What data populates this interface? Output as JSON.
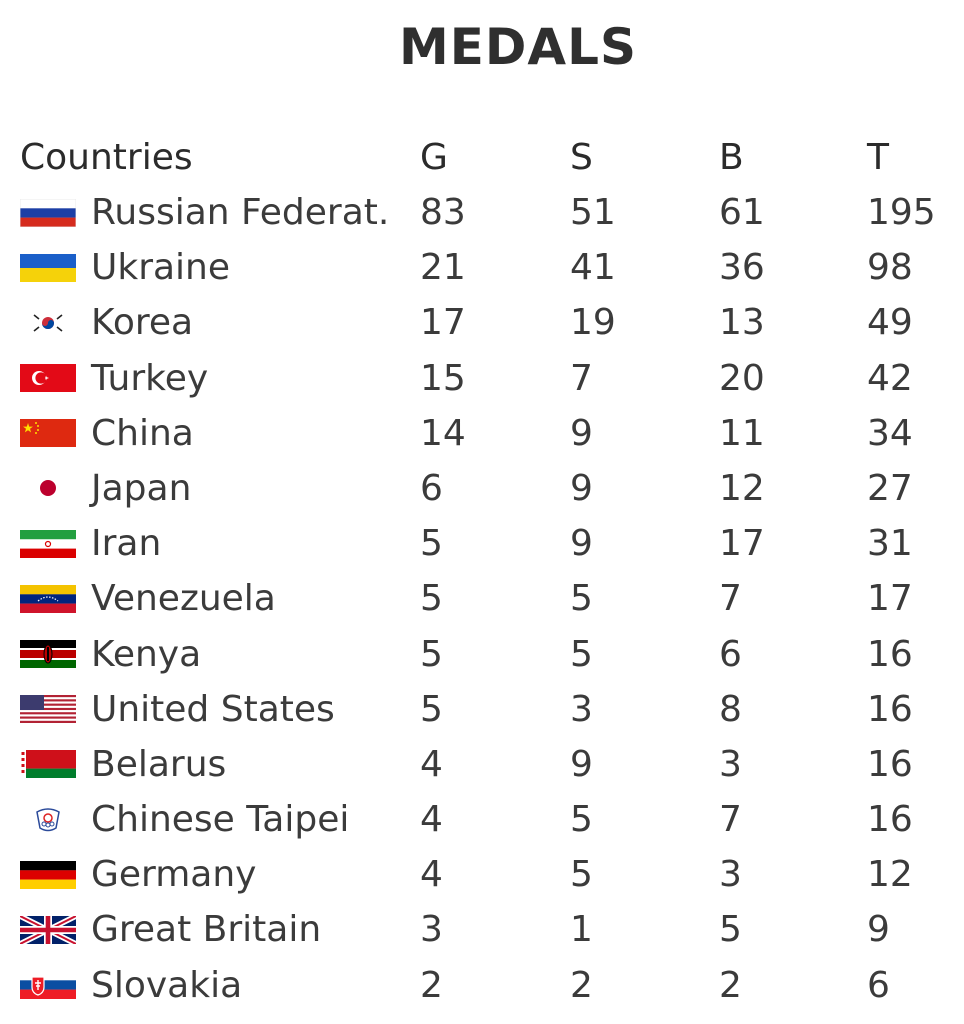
{
  "chart_data": {
    "type": "table",
    "title": "MEDALS",
    "columns": [
      "Countries",
      "G",
      "S",
      "B",
      "T"
    ],
    "rows": [
      {
        "country": "Russian Federat.",
        "flag_icon": "russia-flag-icon",
        "g": "83",
        "s": "51",
        "b": "61",
        "t": "195"
      },
      {
        "country": "Ukraine",
        "flag_icon": "ukraine-flag-icon",
        "g": "21",
        "s": "41",
        "b": "36",
        "t": "98"
      },
      {
        "country": "Korea",
        "flag_icon": "korea-flag-icon",
        "g": "17",
        "s": "19",
        "b": "13",
        "t": "49"
      },
      {
        "country": "Turkey",
        "flag_icon": "turkey-flag-icon",
        "g": "15",
        "s": "7",
        "b": "20",
        "t": "42"
      },
      {
        "country": "China",
        "flag_icon": "china-flag-icon",
        "g": "14",
        "s": "9",
        "b": "11",
        "t": "34"
      },
      {
        "country": "Japan",
        "flag_icon": "japan-flag-icon",
        "g": "6",
        "s": "9",
        "b": "12",
        "t": "27"
      },
      {
        "country": "Iran",
        "flag_icon": "iran-flag-icon",
        "g": "5",
        "s": "9",
        "b": "17",
        "t": "31"
      },
      {
        "country": "Venezuela",
        "flag_icon": "venezuela-flag-icon",
        "g": "5",
        "s": "5",
        "b": "7",
        "t": "17"
      },
      {
        "country": "Kenya",
        "flag_icon": "kenya-flag-icon",
        "g": "5",
        "s": "5",
        "b": "6",
        "t": "16"
      },
      {
        "country": "United States",
        "flag_icon": "usa-flag-icon",
        "g": "5",
        "s": "3",
        "b": "8",
        "t": "16"
      },
      {
        "country": "Belarus",
        "flag_icon": "belarus-flag-icon",
        "g": "4",
        "s": "9",
        "b": "3",
        "t": "16"
      },
      {
        "country": "Chinese Taipei",
        "flag_icon": "chinese-taipei-flag-icon",
        "g": "4",
        "s": "5",
        "b": "7",
        "t": "16"
      },
      {
        "country": "Germany",
        "flag_icon": "germany-flag-icon",
        "g": "4",
        "s": "5",
        "b": "3",
        "t": "12"
      },
      {
        "country": "Great Britain",
        "flag_icon": "great-britain-flag-icon",
        "g": "3",
        "s": "1",
        "b": "5",
        "t": "9"
      },
      {
        "country": "Slovakia",
        "flag_icon": "slovakia-flag-icon",
        "g": "2",
        "s": "2",
        "b": "2",
        "t": "6"
      }
    ]
  }
}
